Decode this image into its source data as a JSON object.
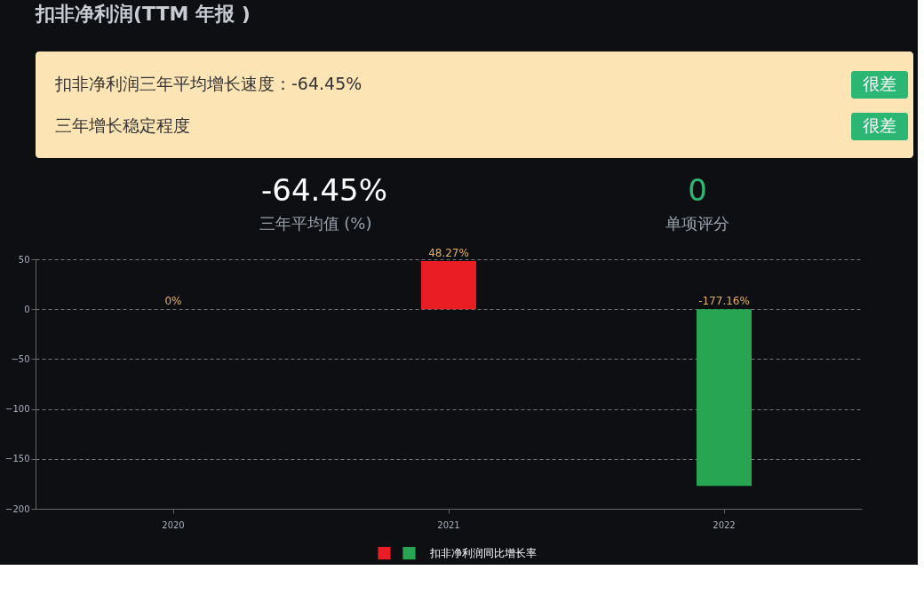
{
  "chart_data": {
    "type": "bar",
    "title": "扣非净利润(TTM 年报 )",
    "annotations": [
      "扣非净利润三年平均增长速度：-64.45%",
      "很差",
      "三年增长稳定程度",
      "很差",
      "-64.45%",
      "三年平均值 (%)",
      "0",
      "单项评分"
    ],
    "categories": [
      "2020",
      "2021",
      "2022"
    ],
    "series": [
      {
        "name": "扣非净利润同比增长率",
        "colors": [
          "#ea1c24",
          "#ea1c24",
          "#27a552"
        ],
        "values": [
          0,
          48.27,
          -177.16
        ],
        "value_labels": [
          "0%",
          "48.27%",
          "-177.16%"
        ]
      }
    ],
    "ylim": [
      -200,
      50
    ],
    "yticks": [
      -200,
      -150,
      -100,
      -50,
      0,
      50
    ],
    "grid": "y",
    "legend": "bottom"
  }
}
